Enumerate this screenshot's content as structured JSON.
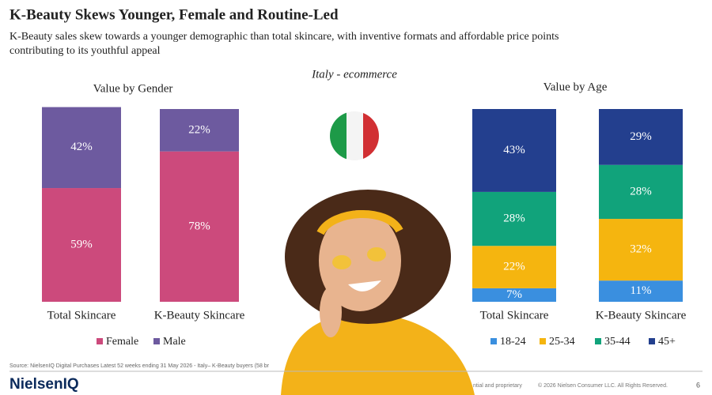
{
  "header": {
    "title": "K-Beauty Skews Younger, Female and Routine-Led",
    "subtitle_lines": [
      "K-Beauty sales skew towards a younger demographic than total skincare, with inventive formats and affordable price points",
      "contributing to its youthful appeal"
    ],
    "market": "Italy - ecommerce"
  },
  "chart_data": [
    {
      "type": "stacked_bar",
      "title": "Value by Gender",
      "categories": [
        "Total Skincare",
        "K-Beauty Skincare"
      ],
      "ylim": [
        0,
        100
      ],
      "series": [
        {
          "name": "Female",
          "color": "#cc4a7c",
          "values": [
            59,
            78
          ],
          "value_labels": [
            "59%",
            "78%"
          ]
        },
        {
          "name": "Male",
          "color": "#6d5a9f",
          "values": [
            42,
            22
          ],
          "value_labels": [
            "42%",
            "22%"
          ]
        }
      ]
    },
    {
      "type": "stacked_bar",
      "title": "Value by Age",
      "categories": [
        "Total Skincare",
        "K-Beauty Skincare"
      ],
      "ylim": [
        0,
        100
      ],
      "series": [
        {
          "name": "18-24",
          "color": "#3a8fdf",
          "values": [
            7,
            11
          ],
          "value_labels": [
            "7%",
            "11%"
          ]
        },
        {
          "name": "25-34",
          "color": "#f5b50f",
          "values": [
            22,
            32
          ],
          "value_labels": [
            "22%",
            "32%"
          ]
        },
        {
          "name": "35-44",
          "color": "#11a37b",
          "values": [
            28,
            28
          ],
          "value_labels": [
            "28%",
            "28%"
          ]
        },
        {
          "name": "45+",
          "color": "#233f8e",
          "values": [
            43,
            29
          ],
          "value_labels": [
            "43%",
            "29%"
          ]
        }
      ]
    }
  ],
  "footer": {
    "source": "Source: NielsenIQ Digital Purchases Latest 52 weeks ending 31 May 2026 - Italy– K-Beauty buyers (58 br",
    "logo": "NielsenIQ",
    "confidential": "ntial and proprietary",
    "copyright": "© 2026 Nielsen Consumer LLC. All Rights Reserved.",
    "page": "6"
  }
}
